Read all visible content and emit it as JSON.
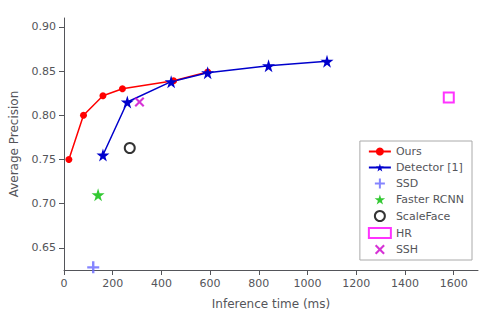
{
  "chart_data": {
    "type": "line",
    "xlabel": "Inference time (ms)",
    "ylabel": "Average Precision",
    "xlim": [
      0,
      1700
    ],
    "ylim": [
      0.625,
      0.91
    ],
    "xticks": [
      0,
      200,
      400,
      600,
      800,
      1000,
      1200,
      1400,
      1600
    ],
    "yticks": [
      0.65,
      {
        "value": 0.7,
        "label": "0.70"
      },
      0.75,
      {
        "value": 0.8,
        "label": "0.80"
      },
      0.85,
      {
        "value": 0.9,
        "label": "0.90"
      }
    ],
    "grid": false,
    "legend": "right",
    "series": [
      {
        "name": "Ours",
        "type": "line",
        "color": "#ff0000",
        "marker": "circle",
        "x": [
          20,
          80,
          160,
          240,
          450,
          590
        ],
        "values": [
          0.75,
          0.8,
          0.822,
          0.83,
          0.839,
          0.849
        ]
      },
      {
        "name": "Detector [1]",
        "type": "line",
        "color": "#0000cc",
        "marker": "star",
        "x": [
          160,
          260,
          440,
          590,
          840,
          1080
        ],
        "values": [
          0.755,
          0.815,
          0.838,
          0.848,
          0.856,
          0.861
        ]
      },
      {
        "name": "SSD",
        "type": "scatter",
        "color": "#6666ff",
        "marker": "plus",
        "x": [
          120
        ],
        "values": [
          0.628
        ]
      },
      {
        "name": "Faster RCNN",
        "type": "scatter",
        "color": "#00bb00",
        "marker": "star",
        "x": [
          140
        ],
        "values": [
          0.71
        ]
      },
      {
        "name": "ScaleFace",
        "type": "scatter",
        "color": "#000000",
        "marker": "circle_open",
        "x": [
          270
        ],
        "values": [
          0.763
        ]
      },
      {
        "name": "HR",
        "type": "scatter",
        "color": "#ff00ff",
        "marker": "square_open",
        "x": [
          1580
        ],
        "values": [
          0.82
        ]
      },
      {
        "name": "SSH",
        "type": "scatter",
        "color": "#cc00cc",
        "marker": "x",
        "x": [
          310
        ],
        "values": [
          0.815
        ]
      }
    ]
  }
}
